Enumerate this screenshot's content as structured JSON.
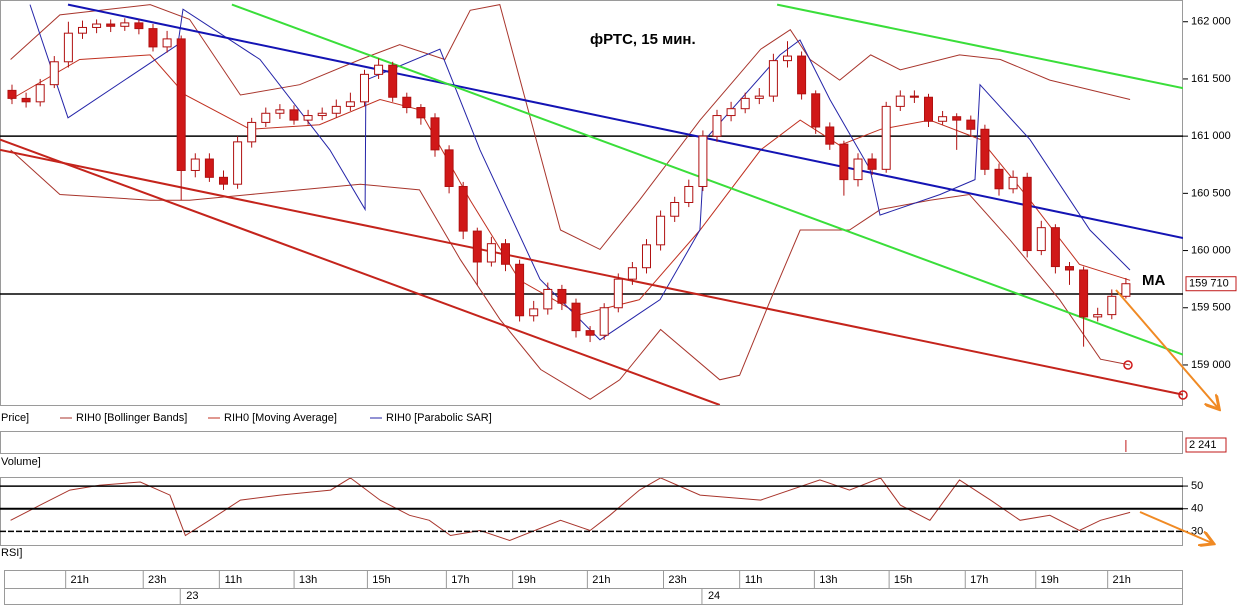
{
  "chart_data": {
    "type": "candlestick",
    "title": "фРТС,  15 мин.",
    "annotation": "MA",
    "price_panel_label": "Price]",
    "xlim": [
      -0.85,
      83.05
    ],
    "ylim": [
      158650,
      162190
    ],
    "yticks": [
      {
        "value": 162000,
        "label": "162 000"
      },
      {
        "value": 161500,
        "label": "161 500"
      },
      {
        "value": 161000,
        "label": "161 000"
      },
      {
        "value": 160500,
        "label": "160 500"
      },
      {
        "value": 160000,
        "label": "160 000"
      },
      {
        "value": 159500,
        "label": "159 500"
      },
      {
        "value": 159000,
        "label": "159 000"
      }
    ],
    "up_color": "#ffffff",
    "down_color": "#d01818",
    "open": [
      161400,
      161330,
      161300,
      161450,
      161650,
      161900,
      161950,
      161980,
      161960,
      161990,
      161940,
      161780,
      161850,
      160700,
      160800,
      160640,
      160580,
      160950,
      161120,
      161200,
      161230,
      161140,
      161180,
      161200,
      161260,
      161300,
      161540,
      161620,
      161340,
      161250,
      161160,
      160880,
      160560,
      160170,
      159900,
      160060,
      159880,
      159430,
      159490,
      159660,
      159540,
      159300,
      159260,
      159500,
      159750,
      159850,
      160050,
      160300,
      160420,
      160560,
      161000,
      161180,
      161240,
      161330,
      161350,
      161660,
      161700,
      161370,
      161080,
      160930,
      160620,
      160800,
      160710,
      161260,
      161350,
      161340,
      161130,
      161170,
      161140,
      161060,
      160710,
      160540,
      160640,
      160000,
      160200,
      159860,
      159830,
      159420,
      159440,
      159600
    ],
    "high": [
      161450,
      161380,
      161500,
      161700,
      162000,
      162010,
      162020,
      162020,
      162030,
      162020,
      161980,
      161920,
      161880,
      160850,
      160850,
      160700,
      161000,
      161160,
      161250,
      161280,
      161270,
      161230,
      161250,
      161320,
      161380,
      161580,
      161680,
      161650,
      161380,
      161280,
      161200,
      160920,
      160600,
      160200,
      160120,
      160100,
      159920,
      159560,
      159720,
      159700,
      159580,
      159340,
      159540,
      159800,
      159900,
      160100,
      160350,
      160470,
      160620,
      161050,
      161230,
      161300,
      161380,
      161420,
      161720,
      161830,
      161740,
      161400,
      161120,
      160960,
      160850,
      160850,
      161300,
      161400,
      161400,
      161370,
      161220,
      161200,
      161180,
      161100,
      160760,
      160700,
      160680,
      160260,
      160230,
      159900,
      159860,
      159500,
      159660,
      159760
    ],
    "low": [
      161280,
      161250,
      161260,
      161420,
      161600,
      161850,
      161900,
      161910,
      161920,
      161890,
      161740,
      161730,
      160440,
      160640,
      160600,
      160530,
      160540,
      160900,
      161080,
      161150,
      161100,
      161100,
      161140,
      161160,
      161220,
      161260,
      161500,
      161300,
      161200,
      161100,
      160820,
      160500,
      160100,
      159700,
      159860,
      159820,
      159380,
      159380,
      159440,
      159480,
      159240,
      159200,
      159220,
      159460,
      159700,
      159800,
      160000,
      160250,
      160380,
      160520,
      160950,
      161130,
      161200,
      161280,
      161300,
      161600,
      161320,
      161020,
      160880,
      160480,
      160560,
      160660,
      160680,
      161220,
      161290,
      161080,
      161100,
      160880,
      161000,
      160660,
      160480,
      160500,
      159940,
      159960,
      159800,
      159700,
      159160,
      159380,
      159400,
      159580
    ],
    "close": [
      161330,
      161300,
      161450,
      161650,
      161900,
      161950,
      161980,
      161960,
      161990,
      161940,
      161780,
      161850,
      160700,
      160800,
      160640,
      160580,
      160950,
      161120,
      161200,
      161230,
      161140,
      161180,
      161200,
      161260,
      161300,
      161540,
      161620,
      161340,
      161250,
      161160,
      160880,
      160560,
      160170,
      159900,
      160060,
      159880,
      159430,
      159490,
      159660,
      159540,
      159300,
      159260,
      159500,
      159750,
      159850,
      160050,
      160300,
      160420,
      160560,
      161000,
      161180,
      161240,
      161330,
      161350,
      161660,
      161700,
      161370,
      161080,
      160930,
      160620,
      160800,
      160710,
      161260,
      161350,
      161340,
      161130,
      161170,
      161140,
      161060,
      160710,
      160540,
      160640,
      160000,
      160200,
      159860,
      159830,
      159420,
      159440,
      159600,
      159710
    ],
    "indicators": [
      {
        "name": "RIH0 [Bollinger Bands]",
        "color": "#a8352c",
        "upper": {
          "x": [
            -0.1,
            3.4,
            9.8,
            12.6,
            16.2,
            20.4,
            24.7,
            27.5,
            30.7,
            32.5,
            34.6,
            38.9,
            41.7,
            44.5,
            48.8,
            53.1,
            55.2,
            56.6,
            58.7,
            60.9,
            63,
            67.2,
            70.1,
            73.6,
            79.3
          ],
          "values": [
            161670,
            162060,
            162150,
            162020,
            161360,
            161450,
            161670,
            161800,
            161670,
            162100,
            162150,
            160180,
            160010,
            160440,
            161140,
            161760,
            161930,
            161670,
            161490,
            161710,
            161580,
            161710,
            161670,
            161490,
            161320
          ]
        },
        "lower": {
          "x": [
            -0.1,
            3.4,
            9.8,
            12.6,
            16.9,
            20.4,
            24.7,
            28.9,
            31.8,
            34.6,
            37.5,
            41,
            43.1,
            46,
            50.2,
            51.6,
            53.8,
            55.9,
            59.4,
            61.6,
            65.1,
            67.9,
            70.8,
            74.3,
            77.2,
            79.3
          ],
          "values": [
            160880,
            160490,
            160440,
            160440,
            160490,
            160530,
            160580,
            160530,
            159920,
            159400,
            158960,
            158700,
            158870,
            159310,
            158870,
            158910,
            159570,
            160180,
            160180,
            160360,
            160440,
            160490,
            160090,
            159570,
            159050,
            159000
          ]
        }
      },
      {
        "name": "RIH0 [Moving Average]",
        "color": "#c03020",
        "x": [
          -0.1,
          4.8,
          9.8,
          12.3,
          16.9,
          21.8,
          26.1,
          28.9,
          32.5,
          36,
          40.3,
          44.5,
          48.8,
          53.1,
          55.9,
          58.7,
          61.6,
          65.1,
          68.7,
          72.2,
          75.7,
          79.3
        ],
        "values": [
          161320,
          161670,
          161710,
          161360,
          161060,
          161100,
          161320,
          161230,
          160440,
          159740,
          159440,
          159570,
          160180,
          160880,
          161140,
          160920,
          161060,
          161140,
          160970,
          160440,
          159880,
          159740
        ]
      },
      {
        "name": "RIH0 [Parabolic SAR]",
        "color": "#2424a8",
        "x": [
          1.28,
          3.97,
          11.77,
          12.13,
          17.59,
          22.55,
          25.04,
          25.1,
          30.35,
          33.19,
          37.45,
          41.7,
          45.96,
          48.79,
          49.15,
          54.47,
          55.89,
          58.01,
          60.85,
          61.56,
          65.82,
          68.3,
          68.65,
          72.2,
          76.45,
          79.29
        ],
        "values": [
          162150,
          161160,
          161800,
          162110,
          161670,
          160880,
          160360,
          161490,
          161760,
          160880,
          159750,
          159220,
          159570,
          160180,
          160970,
          161710,
          161840,
          161320,
          160710,
          160310,
          160490,
          160620,
          161450,
          160970,
          160180,
          159830
        ]
      }
    ],
    "trend_lines": [
      {
        "x": [
          3.97,
          83.05
        ],
        "values": [
          162150,
          160110
        ],
        "color": "#1414b4"
      },
      {
        "x": [
          15.6,
          83.05
        ],
        "values": [
          162150,
          159090
        ],
        "color": "#3ade3a"
      },
      {
        "x": [
          54.26,
          83.05
        ],
        "values": [
          162150,
          161420
        ],
        "color": "#3ade3a"
      },
      {
        "x": [
          -0.85,
          50.2
        ],
        "values": [
          160970,
          158650
        ],
        "color": "#c4241c"
      },
      {
        "x": [
          -0.85,
          83.05
        ],
        "values": [
          160880,
          158740
        ],
        "color": "#c4241c"
      }
    ],
    "hlines": [
      {
        "value": 161000,
        "color": "#000000"
      },
      {
        "value": 159620,
        "color": "#000000"
      }
    ],
    "last_price": {
      "value": 159710,
      "label": "159 710"
    },
    "volume": {
      "label": "Volume]",
      "last": 2241,
      "last_label": "2 241"
    },
    "rsi": {
      "label": "RSI]",
      "color": "#a8352c",
      "ylim": [
        24,
        54
      ],
      "yticks": [
        30,
        40,
        50
      ],
      "x": [
        -0.1,
        2,
        4.1,
        6.2,
        9.1,
        11.2,
        12.3,
        14,
        16.2,
        19,
        22.6,
        24,
        26.1,
        28.2,
        29.6,
        31.1,
        33.2,
        35.3,
        38.9,
        41,
        42.4,
        44.5,
        46,
        48.8,
        53.1,
        57.3,
        59.4,
        61.6,
        63,
        65.1,
        67.2,
        69.4,
        71.5,
        73.6,
        75.7,
        77.2,
        79.3
      ],
      "values": [
        34.9,
        41.6,
        48.2,
        50.4,
        51.8,
        46,
        28.2,
        34.9,
        43.8,
        46,
        48.2,
        53.6,
        43.8,
        37.1,
        34.9,
        28.2,
        30.4,
        26,
        34.9,
        30.4,
        37.1,
        48.2,
        53.6,
        46,
        43.8,
        52.7,
        48.2,
        53.6,
        41.6,
        34.9,
        52.7,
        43.8,
        34.9,
        37.1,
        30.4,
        34.9,
        38.4
      ]
    },
    "time_ticks": [
      {
        "value": 4.8,
        "label": "21h"
      },
      {
        "value": 10.3,
        "label": "23h"
      },
      {
        "value": 15.7,
        "label": "11h"
      },
      {
        "value": 21,
        "label": "13h"
      },
      {
        "value": 26.2,
        "label": "15h"
      },
      {
        "value": 31.8,
        "label": "17h"
      },
      {
        "value": 36.5,
        "label": "19h"
      },
      {
        "value": 41.8,
        "label": "21h"
      },
      {
        "value": 47.2,
        "label": "23h"
      },
      {
        "value": 52.6,
        "label": "11h"
      },
      {
        "value": 57.9,
        "label": "13h"
      },
      {
        "value": 63.2,
        "label": "15h"
      },
      {
        "value": 68.6,
        "label": "17h"
      },
      {
        "value": 73.6,
        "label": "19h"
      },
      {
        "value": 78.7,
        "label": "21h"
      }
    ],
    "day_ticks": [
      {
        "value": 12.5,
        "label": "23"
      },
      {
        "value": 49.5,
        "label": "24"
      }
    ]
  }
}
